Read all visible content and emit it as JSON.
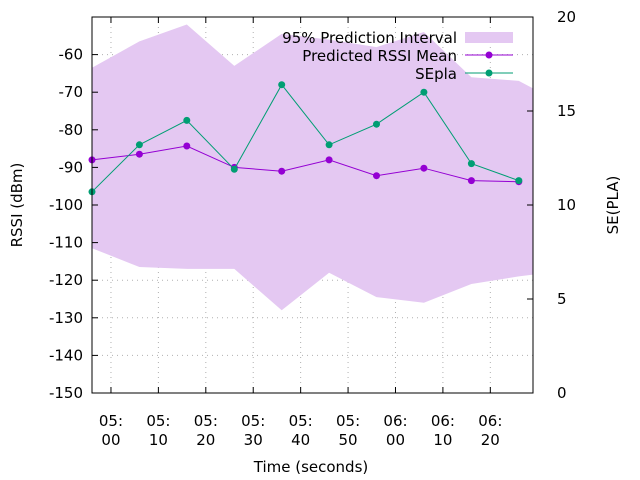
{
  "colors": {
    "band": "#e4c8f2",
    "mean": "#9400d3",
    "sepla": "#009e73",
    "grid": "#b0b0b0"
  },
  "chart_data": {
    "type": "line",
    "title": "",
    "xlabel": "Time (seconds)",
    "ylabel": "RSSI (dBm)",
    "y2label": "SE(PLA)",
    "xlim": [
      "05:-04",
      "06:29"
    ],
    "ylim": [
      -150,
      -50
    ],
    "y2lim": [
      0,
      20
    ],
    "grid": true,
    "legend_position": "top-right",
    "x_ticks": [
      {
        "value": "05:00",
        "label_top": "05:",
        "label_bottom": "00"
      },
      {
        "value": "05:10",
        "label_top": "05:",
        "label_bottom": "10"
      },
      {
        "value": "05:20",
        "label_top": "05:",
        "label_bottom": "20"
      },
      {
        "value": "05:30",
        "label_top": "05:",
        "label_bottom": "30"
      },
      {
        "value": "05:40",
        "label_top": "05:",
        "label_bottom": "40"
      },
      {
        "value": "05:50",
        "label_top": "05:",
        "label_bottom": "50"
      },
      {
        "value": "06:00",
        "label_top": "06:",
        "label_bottom": "00"
      },
      {
        "value": "06:10",
        "label_top": "06:",
        "label_bottom": "10"
      },
      {
        "value": "06:20",
        "label_top": "06:",
        "label_bottom": "20"
      }
    ],
    "y_ticks": [
      -60,
      -70,
      -80,
      -90,
      -100,
      -110,
      -120,
      -130,
      -140,
      -150
    ],
    "y2_ticks": [
      0,
      5,
      10,
      15,
      20
    ],
    "x": [
      "04:56",
      "05:06",
      "05:16",
      "05:26",
      "05:36",
      "05:46",
      "05:56",
      "06:06",
      "06:16",
      "06:26"
    ],
    "band": {
      "name": "95% Prediction Interval",
      "x": [
        "04:56",
        "05:06",
        "05:16",
        "05:26",
        "05:36",
        "05:46",
        "05:56",
        "06:06",
        "06:16",
        "06:26",
        "06:29"
      ],
      "upper": [
        -63.5,
        -56.5,
        -52,
        -63,
        -54.5,
        -56,
        -58,
        -54,
        -66,
        -67,
        -69
      ],
      "lower": [
        -111.5,
        -116.5,
        -117,
        -117,
        -128,
        -118,
        -124.5,
        -126,
        -121,
        -119,
        -118.5
      ]
    },
    "series": [
      {
        "name": "Predicted RSSI Mean",
        "axis": "left",
        "values": [
          -88,
          -86.5,
          -84.3,
          -90,
          -91,
          -88,
          -92.2,
          -90.2,
          -93.5,
          -93.8
        ]
      },
      {
        "name": "SEpla",
        "axis": "right",
        "values": [
          10.7,
          13.2,
          14.5,
          11.9,
          16.4,
          13.2,
          14.3,
          16.0,
          12.2,
          11.3
        ]
      }
    ]
  }
}
